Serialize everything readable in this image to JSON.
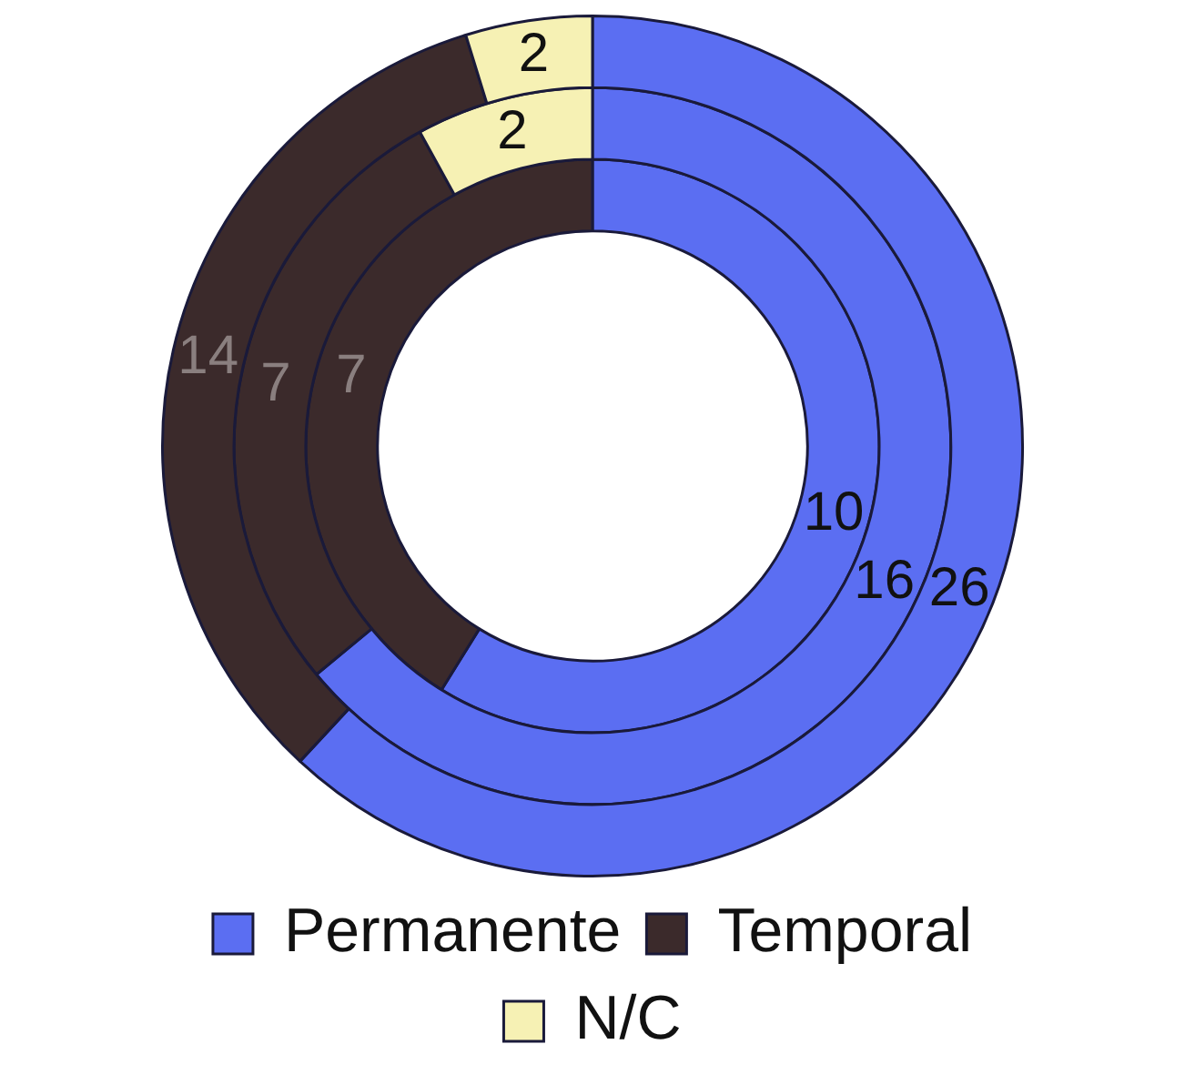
{
  "chart_data": {
    "type": "donut",
    "categories": [
      "Permanente",
      "Temporal",
      "N/C"
    ],
    "colors": [
      "#5b6ef2",
      "#3b2a2b",
      "#f6f1b4"
    ],
    "series": [
      {
        "values": [
          26,
          14,
          2
        ]
      },
      {
        "values": [
          16,
          7,
          2
        ]
      },
      {
        "values": [
          10,
          7,
          0
        ]
      }
    ],
    "data_labels": true,
    "legend": "bottom"
  }
}
